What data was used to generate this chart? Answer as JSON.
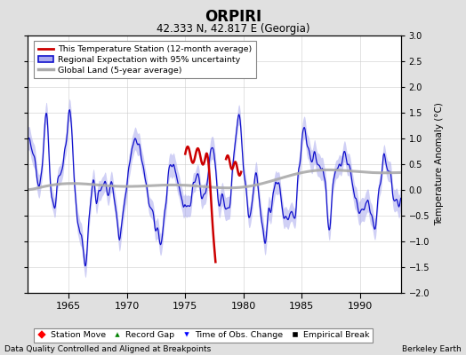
{
  "title": "ORPIRI",
  "subtitle": "42.333 N, 42.817 E (Georgia)",
  "ylabel": "Temperature Anomaly (°C)",
  "xlabel_left": "Data Quality Controlled and Aligned at Breakpoints",
  "xlabel_right": "Berkeley Earth",
  "year_start": 1961.5,
  "year_end": 1993.5,
  "ylim": [
    -2.0,
    3.0
  ],
  "yticks_left": [
    -2,
    -1.5,
    -1,
    -0.5,
    0,
    0.5,
    1,
    1.5,
    2,
    2.5,
    3
  ],
  "yticks_right": [
    -2,
    -1.5,
    -1,
    -0.5,
    0,
    0.5,
    1,
    1.5,
    2,
    2.5,
    3
  ],
  "xticks": [
    1965,
    1970,
    1975,
    1980,
    1985,
    1990
  ],
  "bg_color": "#e0e0e0",
  "plot_bg_color": "#ffffff",
  "blue_line_color": "#1111cc",
  "blue_fill_color": "#aaaaee",
  "red_line_color": "#cc0000",
  "gray_line_color": "#aaaaaa",
  "grid_color": "#cccccc",
  "legend_items": [
    "This Temperature Station (12-month average)",
    "Regional Expectation with 95% uncertainty",
    "Global Land (5-year average)"
  ],
  "marker_legend": [
    "Station Move",
    "Record Gap",
    "Time of Obs. Change",
    "Empirical Break"
  ],
  "marker_colors": [
    "red",
    "green",
    "blue",
    "black"
  ],
  "marker_styles": [
    "D",
    "^",
    "v",
    "s"
  ]
}
